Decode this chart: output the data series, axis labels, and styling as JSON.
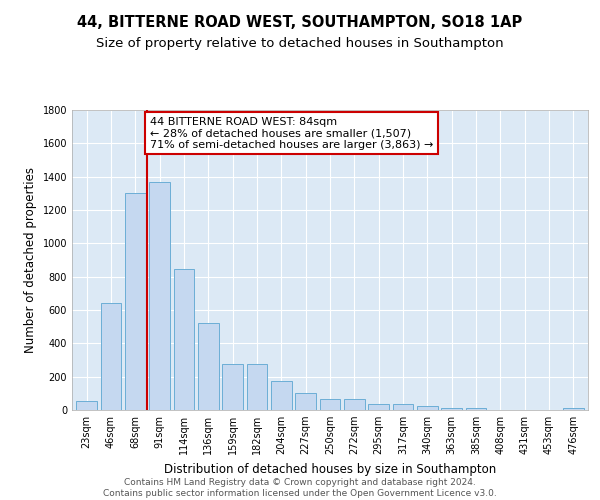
{
  "title": "44, BITTERNE ROAD WEST, SOUTHAMPTON, SO18 1AP",
  "subtitle": "Size of property relative to detached houses in Southampton",
  "xlabel": "Distribution of detached houses by size in Southampton",
  "ylabel": "Number of detached properties",
  "categories": [
    "23sqm",
    "46sqm",
    "68sqm",
    "91sqm",
    "114sqm",
    "136sqm",
    "159sqm",
    "182sqm",
    "204sqm",
    "227sqm",
    "250sqm",
    "272sqm",
    "295sqm",
    "317sqm",
    "340sqm",
    "363sqm",
    "385sqm",
    "408sqm",
    "431sqm",
    "453sqm",
    "476sqm"
  ],
  "values": [
    55,
    645,
    1300,
    1370,
    845,
    525,
    275,
    275,
    175,
    105,
    65,
    65,
    35,
    35,
    22,
    12,
    12,
    0,
    0,
    0,
    12
  ],
  "bar_color": "#c5d8f0",
  "bar_edge_color": "#6baed6",
  "vline_color": "#cc0000",
  "annotation_line1": "44 BITTERNE ROAD WEST: 84sqm",
  "annotation_line2": "← 28% of detached houses are smaller (1,507)",
  "annotation_line3": "71% of semi-detached houses are larger (3,863) →",
  "annotation_box_color": "#ffffff",
  "annotation_box_edge_color": "#cc0000",
  "ylim": [
    0,
    1800
  ],
  "yticks": [
    0,
    200,
    400,
    600,
    800,
    1000,
    1200,
    1400,
    1600,
    1800
  ],
  "background_color": "#dce9f5",
  "grid_color": "#ffffff",
  "footer_line1": "Contains HM Land Registry data © Crown copyright and database right 2024.",
  "footer_line2": "Contains public sector information licensed under the Open Government Licence v3.0.",
  "title_fontsize": 10.5,
  "subtitle_fontsize": 9.5,
  "axis_label_fontsize": 8.5,
  "tick_fontsize": 7,
  "annotation_fontsize": 8,
  "footer_fontsize": 6.5
}
